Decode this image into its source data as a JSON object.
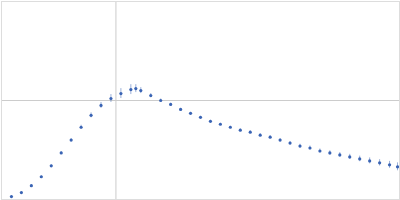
{
  "chart_data": {
    "type": "scatter",
    "color": "#3a64b4",
    "marker": "circle",
    "grid": true,
    "tick_labels": false,
    "xlim": [
      0,
      400
    ],
    "ylim": [
      0,
      200
    ],
    "xticks": [
      115
    ],
    "yticks": [
      100
    ],
    "x": [
      10,
      20,
      30,
      40,
      50,
      60,
      70,
      80,
      90,
      100,
      110,
      120,
      130,
      135,
      140,
      150,
      160,
      170,
      180,
      190,
      200,
      210,
      220,
      230,
      240,
      250,
      260,
      270,
      280,
      290,
      300,
      310,
      320,
      330,
      340,
      350,
      360,
      370,
      380,
      390,
      398
    ],
    "values": [
      3,
      7,
      14,
      23,
      34,
      47,
      60,
      73,
      85,
      95,
      102,
      107,
      111,
      112,
      110,
      105,
      100,
      96,
      91,
      87,
      83,
      79,
      76,
      73,
      70,
      68,
      65,
      63,
      60,
      57,
      54,
      52,
      49,
      47,
      45,
      43,
      41,
      39,
      37,
      35,
      33
    ],
    "errors": [
      0.5,
      0.5,
      0.6,
      0.8,
      1,
      1.2,
      1.5,
      2,
      2.5,
      3,
      4,
      5,
      5,
      4,
      3,
      2,
      1.5,
      1.2,
      1,
      1,
      1,
      1,
      1,
      1,
      1.2,
      1.2,
      1.3,
      1.4,
      1.5,
      1.6,
      1.8,
      2,
      2,
      2.2,
      2.4,
      2.6,
      2.8,
      3,
      3.2,
      3.5,
      4
    ]
  }
}
